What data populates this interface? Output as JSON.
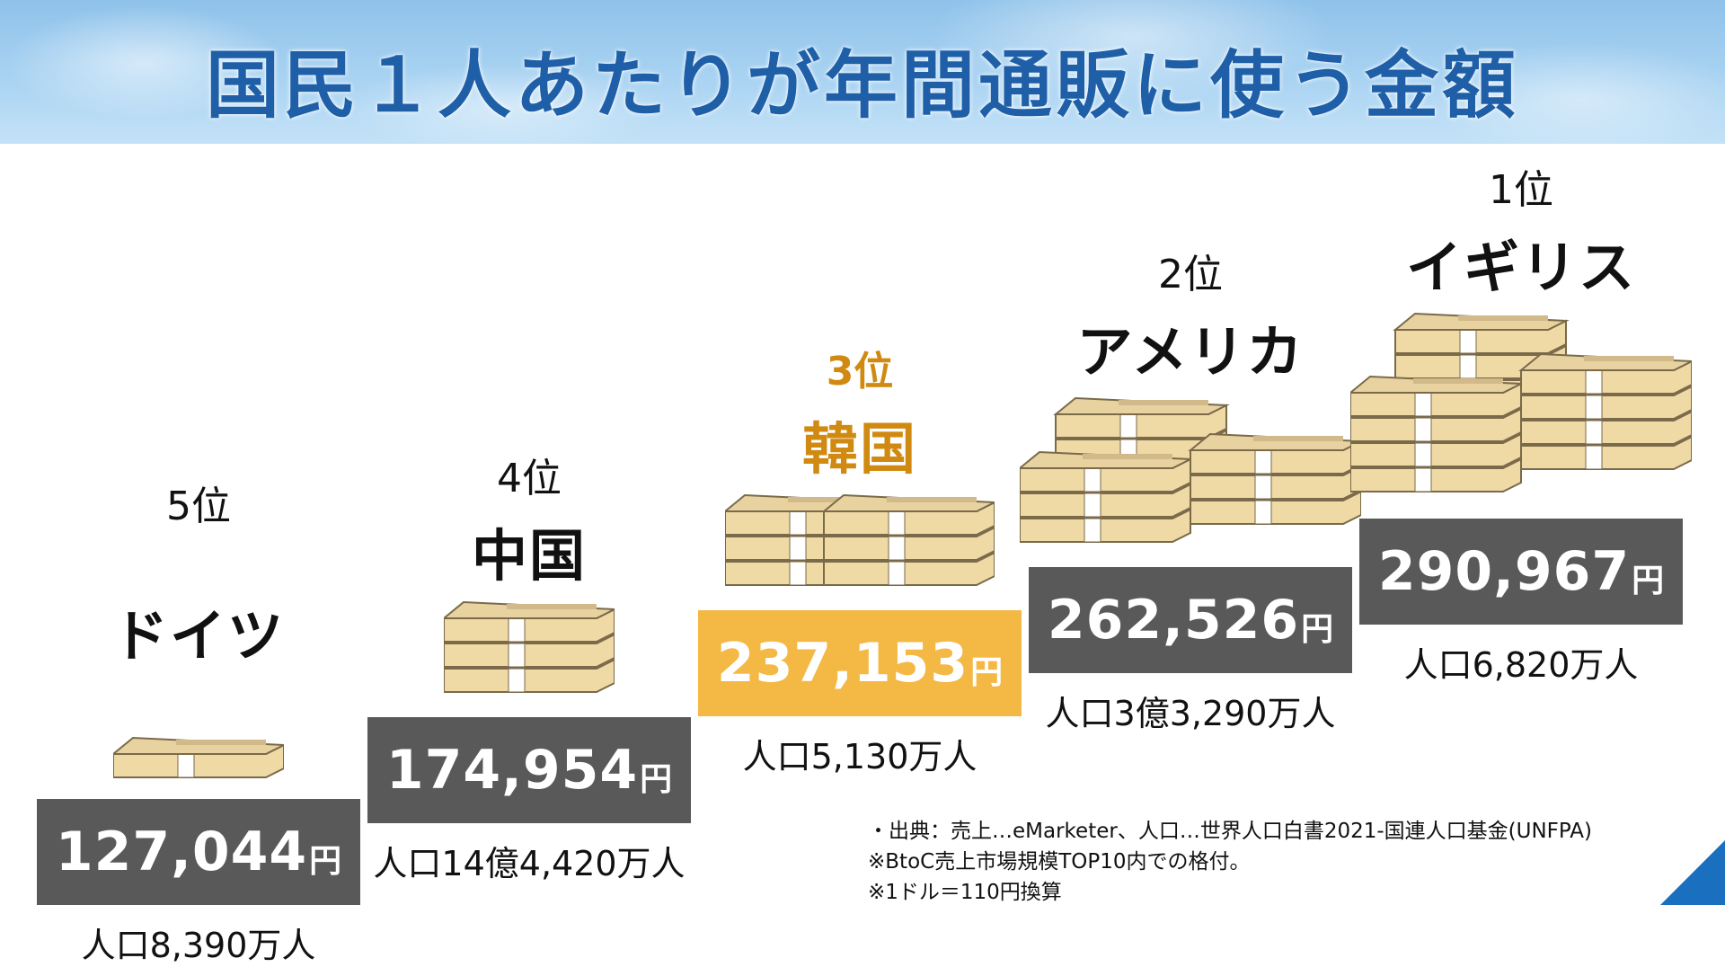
{
  "title": "国民１人あたりが年間通販に使う金額",
  "chart_data": {
    "type": "bar",
    "categories": [
      "ドイツ",
      "中国",
      "韓国",
      "アメリカ",
      "イギリス"
    ],
    "values": [
      127044,
      174954,
      237153,
      262526,
      290967
    ],
    "value_labels": [
      "127,044",
      "174,954",
      "237,153",
      "262,526",
      "290,967"
    ],
    "unit": "円",
    "ranks": [
      "5位",
      "4位",
      "3位",
      "2位",
      "1位"
    ],
    "populations": [
      "人口8,390万人",
      "人口14億4,420万人",
      "人口5,130万人",
      "人口3億3,290万人",
      "人口6,820万人"
    ],
    "highlight_index": 2,
    "colors": {
      "bar": "#595959",
      "highlight_bar": "#f4b844",
      "highlight_text": "#d08a12",
      "title": "#1e5fa8"
    }
  },
  "notes": [
    "・出典：売上…eMarketer、人口…世界人口白書2021-国連人口基金(UNFPA)",
    "※BtoC売上市場規模TOP10内での格付。",
    "※1ドル＝110円換算"
  ]
}
